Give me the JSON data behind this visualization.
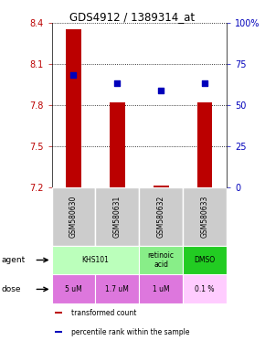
{
  "title": "GDS4912 / 1389314_at",
  "samples": [
    "GSM580630",
    "GSM580631",
    "GSM580632",
    "GSM580633"
  ],
  "bar_values": [
    8.35,
    7.82,
    7.21,
    7.82
  ],
  "bar_base": 7.2,
  "percentile_values": [
    68,
    63,
    59,
    63
  ],
  "ylim": [
    7.2,
    8.4
  ],
  "yticks": [
    7.2,
    7.5,
    7.8,
    8.1,
    8.4
  ],
  "right_yticks": [
    0,
    25,
    50,
    75,
    100
  ],
  "right_ylabels": [
    "0",
    "25",
    "50",
    "75",
    "100%"
  ],
  "bar_color": "#bb0000",
  "dot_color": "#0000bb",
  "agent_row": [
    {
      "label": "KHS101",
      "span": [
        0,
        2
      ],
      "color": "#bbffbb"
    },
    {
      "label": "retinoic\nacid",
      "span": [
        2,
        3
      ],
      "color": "#88ee88"
    },
    {
      "label": "DMSO",
      "span": [
        3,
        4
      ],
      "color": "#22cc22"
    }
  ],
  "dose_row": [
    {
      "label": "5 uM",
      "span": [
        0,
        1
      ],
      "color": "#dd77dd"
    },
    {
      "label": "1.7 uM",
      "span": [
        1,
        2
      ],
      "color": "#dd77dd"
    },
    {
      "label": "1 uM",
      "span": [
        2,
        3
      ],
      "color": "#dd77dd"
    },
    {
      "label": "0.1 %",
      "span": [
        3,
        4
      ],
      "color": "#ffccff"
    }
  ],
  "legend_items": [
    {
      "color": "#bb0000",
      "label": "transformed count"
    },
    {
      "color": "#0000bb",
      "label": "percentile rank within the sample"
    }
  ],
  "background_color": "#ffffff",
  "sample_bg": "#cccccc"
}
